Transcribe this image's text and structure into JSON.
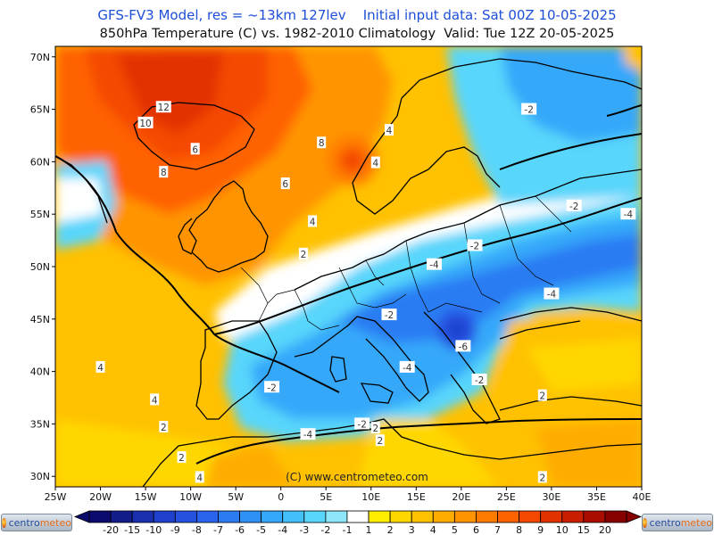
{
  "header": {
    "title_line1": "GFS-FV3 Model, res = ~13km 127lev    Initial input data: Sat 00Z 10-05-2025",
    "title_line2": "850hPa Temperature (C) vs. 1982-2010 Climatology  Valid: Tue 12Z 20-05-2025"
  },
  "map": {
    "extent": {
      "lon_min": -25,
      "lon_max": 40,
      "lat_min": 29,
      "lat_max": 71
    },
    "lat_tick_labels": [
      "70N",
      "65N",
      "60N",
      "55N",
      "50N",
      "45N",
      "40N",
      "35N",
      "30N"
    ],
    "lon_tick_labels": [
      "25W",
      "20W",
      "15W",
      "10W",
      "5W",
      "0",
      "5E",
      "10E",
      "15E",
      "20E",
      "25E",
      "30E",
      "35E",
      "40E"
    ],
    "copyright": "(C) www.centrometeo.com",
    "anomaly_labels": [
      {
        "text": "12",
        "lon": -13,
        "lat": 65.2,
        "color": "#ffffff"
      },
      {
        "text": "10",
        "lon": -15,
        "lat": 63.7,
        "color": "#ffffff"
      },
      {
        "text": "8",
        "lon": -13,
        "lat": 59.0,
        "color": "#ffffff"
      },
      {
        "text": "6",
        "lon": -9.5,
        "lat": 61.2,
        "color": "#ffffff"
      },
      {
        "text": "6",
        "lon": 0.5,
        "lat": 57.9,
        "color": "#ffffff"
      },
      {
        "text": "8",
        "lon": 4.5,
        "lat": 61.8,
        "color": "#ffffff"
      },
      {
        "text": "4",
        "lon": 10.5,
        "lat": 59.9,
        "color": "#ffffff"
      },
      {
        "text": "4",
        "lon": 12,
        "lat": 63.0,
        "color": "#ffffff"
      },
      {
        "text": "4",
        "lon": 3.5,
        "lat": 54.3,
        "color": "#ffffff"
      },
      {
        "text": "2",
        "lon": 2.5,
        "lat": 51.2,
        "color": "#ffffff"
      },
      {
        "text": "4",
        "lon": -20,
        "lat": 40.4,
        "color": "#ffffff"
      },
      {
        "text": "4",
        "lon": -14,
        "lat": 37.3,
        "color": "#ffffff"
      },
      {
        "text": "2",
        "lon": -13,
        "lat": 34.7,
        "color": "#ffffff"
      },
      {
        "text": "2",
        "lon": -11,
        "lat": 31.8,
        "color": "#ffffff"
      },
      {
        "text": "4",
        "lon": -9,
        "lat": 29.9,
        "color": "#ffffff"
      },
      {
        "text": "-2",
        "lon": -1,
        "lat": 38.5,
        "color": "#ffffff"
      },
      {
        "text": "-4",
        "lon": 3.0,
        "lat": 34.0,
        "color": "#ffffff"
      },
      {
        "text": "-2",
        "lon": 9.0,
        "lat": 35.0,
        "color": "#ffffff"
      },
      {
        "text": "2",
        "lon": 10.5,
        "lat": 34.6,
        "color": "#ffffff"
      },
      {
        "text": "2",
        "lon": 11,
        "lat": 33.4,
        "color": "#ffffff"
      },
      {
        "text": "-4",
        "lon": 14,
        "lat": 40.4,
        "color": "#ffffff"
      },
      {
        "text": "-2",
        "lon": 12.0,
        "lat": 45.4,
        "color": "#ffffff"
      },
      {
        "text": "-4",
        "lon": 17,
        "lat": 50.2,
        "color": "#ffffff"
      },
      {
        "text": "-2",
        "lon": 21.5,
        "lat": 52.0,
        "color": "#ffffff"
      },
      {
        "text": "-6",
        "lon": 20.2,
        "lat": 42.4,
        "color": "#ffffff"
      },
      {
        "text": "-2",
        "lon": 22,
        "lat": 39.2,
        "color": "#ffffff"
      },
      {
        "text": "-4",
        "lon": 30.0,
        "lat": 47.4,
        "color": "#ffffff"
      },
      {
        "text": "-2",
        "lon": 32.5,
        "lat": 55.8,
        "color": "#ffffff"
      },
      {
        "text": "-4",
        "lon": 38.5,
        "lat": 55.0,
        "color": "#ffffff"
      },
      {
        "text": "-2",
        "lon": 27.5,
        "lat": 65.0,
        "color": "#ffffff"
      },
      {
        "text": "2",
        "lon": 29,
        "lat": 37.7,
        "color": "#ffffff"
      },
      {
        "text": "2",
        "lon": 29,
        "lat": 29.9,
        "color": "#ffffff"
      }
    ]
  },
  "colorbar": {
    "labels": [
      "-20",
      "-15",
      "-10",
      "-9",
      "-8",
      "-7",
      "-6",
      "-5",
      "-4",
      "-3",
      "-2",
      "-1",
      "1",
      "2",
      "3",
      "4",
      "5",
      "6",
      "7",
      "8",
      "9",
      "10",
      "15",
      "20"
    ],
    "colors": [
      "#0b0b6e",
      "#121c8a",
      "#1a2eb0",
      "#1f40cc",
      "#2550e0",
      "#2a63ee",
      "#2b7bf3",
      "#2e91f6",
      "#34a8fa",
      "#41c0fb",
      "#59d6fb",
      "#8ee6fb",
      "#ffffff",
      "#ffee00",
      "#ffd700",
      "#ffc100",
      "#ffac00",
      "#ff9400",
      "#ff7b00",
      "#ff6200",
      "#f44800",
      "#e23200",
      "#ca1e00",
      "#aa0c00",
      "#870000"
    ]
  },
  "logos": {
    "left_text_a": "centro",
    "left_text_b": "meteo",
    "right_text_a": "centro",
    "right_text_b": "meteo"
  }
}
